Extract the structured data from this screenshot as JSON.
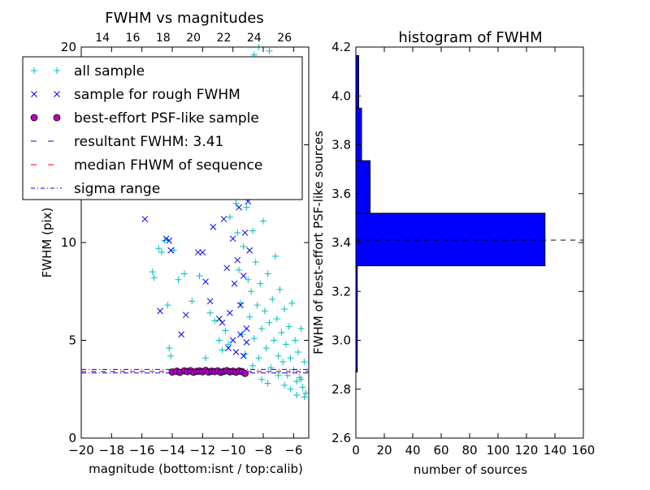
{
  "chart_data": [
    {
      "type": "scatter",
      "title": "FWHM vs magnitudes",
      "xlabel": "magnitude (bottom:isnt / top:calib)",
      "ylabel": "FWHM (pix)",
      "xlim": [
        -20,
        -5
      ],
      "ylim": [
        0,
        20
      ],
      "top_xlim": [
        12.6,
        27.6
      ],
      "x_ticks": [
        "−20",
        "−18",
        "−16",
        "−14",
        "−12",
        "−10",
        "−8",
        "−6"
      ],
      "x_tick_values": [
        -20,
        -18,
        -16,
        -14,
        -12,
        -10,
        -8,
        -6
      ],
      "top_x_ticks": [
        "14",
        "16",
        "18",
        "20",
        "22",
        "24",
        "26"
      ],
      "top_x_tick_values": [
        14,
        16,
        18,
        20,
        22,
        24,
        26
      ],
      "y_ticks": [
        "0",
        "5",
        "10",
        "15",
        "20"
      ],
      "y_tick_values": [
        0,
        5,
        10,
        15,
        20
      ],
      "legend_position": "upper-left",
      "legend": [
        {
          "label": "all sample",
          "marker": "plus",
          "color": "#00bfbf"
        },
        {
          "label": "sample for rough FWHM",
          "marker": "x",
          "color": "#0000ff"
        },
        {
          "label": "best-effort PSF-like sample",
          "marker": "circle",
          "color": "#bf00bf"
        },
        {
          "label": "resultant FWHM: 3.41",
          "marker": "dashed-line",
          "color": "#0000ff"
        },
        {
          "label": "median FHWM of sequence",
          "marker": "dashed-line",
          "color": "#ff0000"
        },
        {
          "label": "sigma range",
          "marker": "dashdot-line",
          "color": "#0000ff"
        }
      ],
      "series": [
        {
          "name": "all sample",
          "marker": "plus",
          "color": "#00bfbf",
          "points": [
            [
              -15.3,
              8.5
            ],
            [
              -15.2,
              8.2
            ],
            [
              -14.9,
              9.7
            ],
            [
              -14.7,
              9.5
            ],
            [
              -14.5,
              10.1
            ],
            [
              -14.3,
              6.8
            ],
            [
              -14.2,
              4.6
            ],
            [
              -14.1,
              4.2
            ],
            [
              -13.9,
              9.6
            ],
            [
              -13.6,
              8.1
            ],
            [
              -13.2,
              8.4
            ],
            [
              -12.7,
              7.0
            ],
            [
              -12.2,
              8.3
            ],
            [
              -11.8,
              4.1
            ],
            [
              -11.5,
              6.4
            ],
            [
              -11.2,
              6.0
            ],
            [
              -10.9,
              5.0
            ],
            [
              -10.7,
              4.5
            ],
            [
              -10.5,
              5.5
            ],
            [
              -10.3,
              4.8
            ],
            [
              -10.2,
              11.3
            ],
            [
              -10.1,
              13.4
            ],
            [
              -9.9,
              15.1
            ],
            [
              -9.8,
              12.0
            ],
            [
              -9.7,
              10.5
            ],
            [
              -9.6,
              8.6
            ],
            [
              -9.5,
              6.9
            ],
            [
              -9.4,
              5.3
            ],
            [
              -9.3,
              9.8
            ],
            [
              -9.2,
              4.3
            ],
            [
              -9.1,
              11.8
            ],
            [
              -9.0,
              8.1
            ],
            [
              -8.9,
              6.2
            ],
            [
              -8.8,
              7.5
            ],
            [
              -8.7,
              10.6
            ],
            [
              -8.6,
              5.1
            ],
            [
              -8.5,
              9.0
            ],
            [
              -8.4,
              6.8
            ],
            [
              -8.3,
              4.1
            ],
            [
              -8.2,
              7.9
            ],
            [
              -8.1,
              5.6
            ],
            [
              -8.0,
              11.1
            ],
            [
              -7.9,
              6.5
            ],
            [
              -7.8,
              4.6
            ],
            [
              -7.7,
              8.4
            ],
            [
              -7.6,
              5.9
            ],
            [
              -7.5,
              3.6
            ],
            [
              -7.4,
              7.1
            ],
            [
              -7.3,
              5.0
            ],
            [
              -7.2,
              9.3
            ],
            [
              -7.1,
              6.1
            ],
            [
              -7.0,
              4.2
            ],
            [
              -6.9,
              7.6
            ],
            [
              -6.8,
              5.4
            ],
            [
              -6.7,
              3.9
            ],
            [
              -6.6,
              6.6
            ],
            [
              -6.5,
              4.8
            ],
            [
              -6.4,
              3.2
            ],
            [
              -6.3,
              5.7
            ],
            [
              -6.2,
              4.1
            ],
            [
              -6.1,
              6.9
            ],
            [
              -6.0,
              3.5
            ],
            [
              -5.9,
              5.0
            ],
            [
              -5.8,
              2.9
            ],
            [
              -5.7,
              4.4
            ],
            [
              -5.6,
              3.1
            ],
            [
              -5.5,
              5.6
            ],
            [
              -5.4,
              2.6
            ],
            [
              -5.3,
              3.9
            ],
            [
              -5.2,
              2.3
            ],
            [
              -8.6,
              19.6
            ],
            [
              -8.3,
              20.0
            ],
            [
              -7.6,
              19.8
            ],
            [
              -6.8,
              19.3
            ],
            [
              -7.1,
              18.7
            ],
            [
              -9.4,
              17.9
            ],
            [
              -8.9,
              16.5
            ],
            [
              -8.0,
              15.8
            ],
            [
              -7.4,
              14.2
            ],
            [
              -6.5,
              13.1
            ],
            [
              -9.2,
              3.3
            ],
            [
              -8.7,
              3.7
            ],
            [
              -8.1,
              3.0
            ],
            [
              -7.7,
              2.8
            ],
            [
              -7.0,
              3.2
            ],
            [
              -6.6,
              2.7
            ],
            [
              -6.2,
              2.5
            ],
            [
              -5.8,
              2.2
            ],
            [
              -5.5,
              3.0
            ],
            [
              -5.3,
              2.1
            ]
          ]
        },
        {
          "name": "sample for rough FWHM",
          "marker": "x",
          "color": "#0000ff",
          "points": [
            [
              -15.8,
              11.2
            ],
            [
              -14.8,
              6.5
            ],
            [
              -14.4,
              10.2
            ],
            [
              -14.2,
              10.1
            ],
            [
              -14.1,
              9.6
            ],
            [
              -13.4,
              5.3
            ],
            [
              -13.1,
              6.3
            ],
            [
              -12.3,
              9.5
            ],
            [
              -12.0,
              9.5
            ],
            [
              -11.8,
              8.0
            ],
            [
              -11.5,
              7.0
            ],
            [
              -11.3,
              10.8
            ],
            [
              -10.9,
              6.1
            ],
            [
              -10.7,
              5.9
            ],
            [
              -10.6,
              11.2
            ],
            [
              -10.4,
              8.7
            ],
            [
              -10.2,
              6.4
            ],
            [
              -10.1,
              12.6
            ],
            [
              -10.0,
              10.2
            ],
            [
              -9.9,
              7.9
            ],
            [
              -9.8,
              14.1
            ],
            [
              -9.7,
              9.1
            ],
            [
              -9.6,
              11.8
            ],
            [
              -9.5,
              6.8
            ],
            [
              -9.4,
              13.3
            ],
            [
              -9.3,
              8.3
            ],
            [
              -9.2,
              10.5
            ],
            [
              -9.1,
              5.6
            ],
            [
              -9.0,
              12.1
            ],
            [
              -8.9,
              9.6
            ],
            [
              -10.3,
              4.6
            ],
            [
              -10.0,
              5.0
            ],
            [
              -9.8,
              4.4
            ],
            [
              -9.5,
              5.3
            ],
            [
              -9.3,
              4.2
            ],
            [
              -9.1,
              4.9
            ],
            [
              -9.9,
              15.4
            ],
            [
              -9.6,
              16.8
            ],
            [
              -9.3,
              15.9
            ],
            [
              -9.0,
              17.3
            ]
          ]
        },
        {
          "name": "best-effort PSF-like sample",
          "marker": "circle",
          "color": "#bf00bf",
          "points": [
            [
              -14.0,
              3.38
            ],
            [
              -13.7,
              3.42
            ],
            [
              -13.5,
              3.36
            ],
            [
              -13.2,
              3.44
            ],
            [
              -13.0,
              3.4
            ],
            [
              -12.8,
              3.45
            ],
            [
              -12.6,
              3.37
            ],
            [
              -12.4,
              3.41
            ],
            [
              -12.2,
              3.43
            ],
            [
              -12.0,
              3.39
            ],
            [
              -11.8,
              3.46
            ],
            [
              -11.6,
              3.38
            ],
            [
              -11.4,
              3.42
            ],
            [
              -11.2,
              3.4
            ],
            [
              -11.0,
              3.44
            ],
            [
              -10.8,
              3.36
            ],
            [
              -10.6,
              3.41
            ],
            [
              -10.4,
              3.45
            ],
            [
              -10.2,
              3.39
            ],
            [
              -10.0,
              3.42
            ],
            [
              -9.8,
              3.37
            ],
            [
              -9.6,
              3.43
            ],
            [
              -9.4,
              3.4
            ],
            [
              -9.2,
              3.31
            ]
          ]
        }
      ],
      "hlines": [
        {
          "name": "resultant FWHM: 3.41",
          "y": 3.41,
          "style": "dashed",
          "color": "#0000ff"
        },
        {
          "name": "median FHWM of sequence",
          "y": 3.41,
          "style": "dashed",
          "color": "#ff0000"
        },
        {
          "name": "sigma range",
          "y": 3.33,
          "style": "dashdot",
          "color": "#0000ff"
        },
        {
          "name": "sigma range",
          "y": 3.51,
          "style": "dashdot",
          "color": "#0000ff"
        }
      ]
    },
    {
      "type": "bar",
      "orientation": "horizontal",
      "title": "histogram of FWHM",
      "xlabel": "number of sources",
      "ylabel": "FWHM of best-effort PSF-like sources",
      "xlim": [
        0,
        160
      ],
      "ylim": [
        2.6,
        4.2
      ],
      "x_ticks": [
        "0",
        "20",
        "40",
        "60",
        "80",
        "100",
        "120",
        "140",
        "160"
      ],
      "x_tick_values": [
        0,
        20,
        40,
        60,
        80,
        100,
        120,
        140,
        160
      ],
      "y_ticks": [
        "2.6",
        "2.8",
        "3.0",
        "3.2",
        "3.4",
        "3.6",
        "3.8",
        "4.0",
        "4.2"
      ],
      "y_tick_values": [
        2.6,
        2.8,
        3.0,
        3.2,
        3.4,
        3.6,
        3.8,
        4.0,
        4.2
      ],
      "bin_edges": [
        2.87,
        3.09,
        3.305,
        3.52,
        3.735,
        3.95,
        4.165
      ],
      "values": [
        1,
        1,
        133,
        10,
        4,
        2
      ],
      "bar_color": "#0000ff",
      "reference_line": {
        "y": 3.41,
        "style": "dashed",
        "color": "#000000"
      }
    }
  ]
}
